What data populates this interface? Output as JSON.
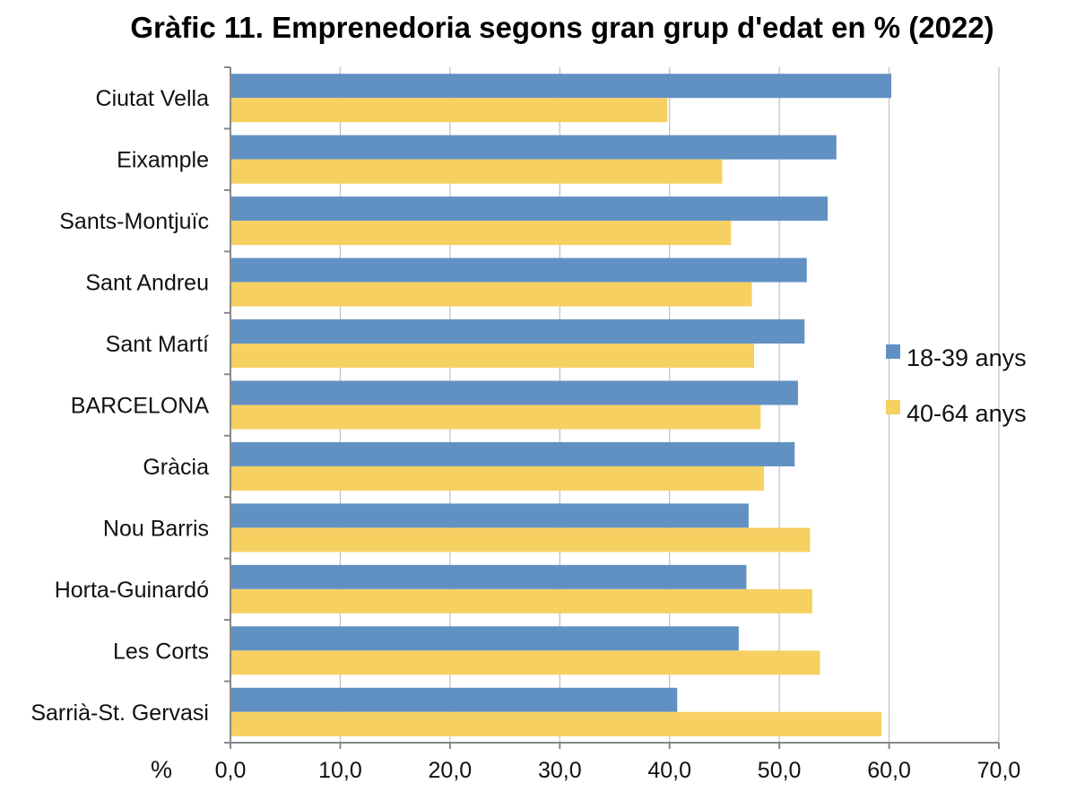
{
  "chart_data": {
    "type": "bar",
    "orientation": "horizontal",
    "title": "Gràfic 11. Emprenedoria segons gran grup d'edat en % (2022)",
    "unit_label": "%",
    "categories": [
      "Ciutat Vella",
      "Eixample",
      "Sants-Montjuïc",
      "Sant Andreu",
      "Sant Martí",
      "BARCELONA",
      "Gràcia",
      "Nou Barris",
      "Horta-Guinardó",
      "Les Corts",
      "Sarrià-St. Gervasi"
    ],
    "series": [
      {
        "name": "18-39 anys",
        "color": "#6191c3",
        "values": [
          60.2,
          55.2,
          54.4,
          52.5,
          52.3,
          51.7,
          51.4,
          47.2,
          47.0,
          46.3,
          40.7
        ]
      },
      {
        "name": "40-64 anys",
        "color": "#f6d060",
        "values": [
          39.8,
          44.8,
          45.6,
          47.5,
          47.7,
          48.3,
          48.6,
          52.8,
          53.0,
          53.7,
          59.3
        ]
      }
    ],
    "xlim": [
      0,
      70
    ],
    "xticks": [
      "0,0",
      "10,0",
      "20,0",
      "30,0",
      "40,0",
      "50,0",
      "60,0",
      "70,0"
    ],
    "grid": true,
    "legend_position": "right"
  }
}
